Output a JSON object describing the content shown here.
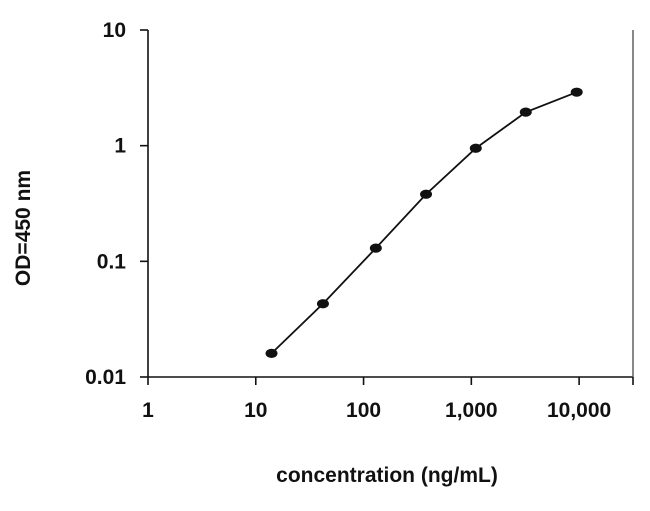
{
  "chart_data": {
    "type": "line",
    "title": "",
    "xlabel": "concentration (ng/mL)",
    "ylabel": "OD=450 nm",
    "x_scale": "log",
    "y_scale": "log",
    "xlim": [
      1,
      31623
    ],
    "ylim": [
      0.01,
      10
    ],
    "x_ticks": [
      1,
      10,
      100,
      1000,
      10000
    ],
    "x_tick_labels": [
      "1",
      "10",
      "100",
      "1,000",
      "10,000"
    ],
    "y_ticks": [
      0.01,
      0.1,
      1,
      10
    ],
    "y_tick_labels": [
      "0.01",
      "0.1",
      "1",
      "10"
    ],
    "grid": false,
    "legend": "none",
    "series": [
      {
        "color": "#111111",
        "x": [
          14,
          42,
          130,
          380,
          1100,
          3200,
          9500
        ],
        "y": [
          0.016,
          0.043,
          0.13,
          0.38,
          0.95,
          1.95,
          2.9
        ]
      }
    ]
  }
}
